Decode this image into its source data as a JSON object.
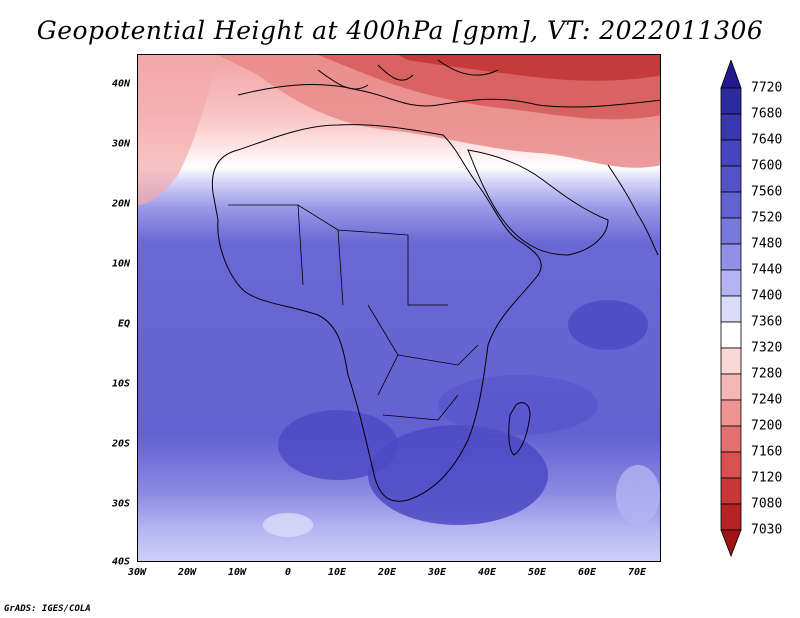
{
  "title": "Geopotential Height at 400hPa [gpm], VT: 2022011306",
  "footer": "GrADS: IGES/COLA",
  "lat_labels": [
    "40N",
    "30N",
    "20N",
    "10N",
    "EQ",
    "10S",
    "20S",
    "30S",
    "40S"
  ],
  "lon_labels": [
    "30W",
    "20W",
    "10W",
    "0",
    "10E",
    "20E",
    "30E",
    "40E",
    "50E",
    "60E",
    "70E"
  ],
  "colorbar": {
    "levels": [
      "7720",
      "7680",
      "7640",
      "7600",
      "7560",
      "7520",
      "7480",
      "7440",
      "7400",
      "7360",
      "7320",
      "7280",
      "7240",
      "7200",
      "7160",
      "7120",
      "7080",
      "7030"
    ],
    "colors": [
      "#211a8c",
      "#2d2a9e",
      "#3936b0",
      "#4644bf",
      "#5552c9",
      "#6462d2",
      "#7877db",
      "#9190e6",
      "#b3b4f1",
      "#dcdcfa",
      "#ffffff",
      "#fcd7d7",
      "#f6b6b6",
      "#ef9393",
      "#e47171",
      "#d85151",
      "#c93838",
      "#b52323",
      "#a11414"
    ]
  }
}
